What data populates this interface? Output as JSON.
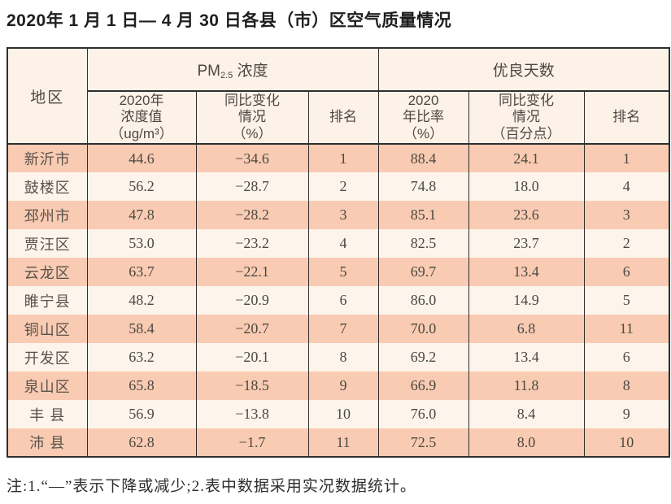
{
  "title": "2020年 1 月 1 日— 4 月 30 日各县（市）区空气质量情况",
  "table": {
    "region_header": "地区",
    "pm_group": {
      "prefix": "PM",
      "sub": "2.5",
      "suffix": " 浓度"
    },
    "days_group": "优良天数",
    "subheaders": [
      "2020年\n浓度值\n（ug/m³）",
      "同比变化\n情况\n（%）",
      "排名",
      "2020\n年比率\n（%）",
      "同比变化\n情况\n（百分点）",
      "排名"
    ],
    "rows": [
      {
        "region": "新沂市",
        "pm_value": "44.6",
        "pm_change": "−34.6",
        "pm_rank": "1",
        "days_ratio": "88.4",
        "days_change": "24.1",
        "days_rank": "1"
      },
      {
        "region": "鼓楼区",
        "pm_value": "56.2",
        "pm_change": "−28.7",
        "pm_rank": "2",
        "days_ratio": "74.8",
        "days_change": "18.0",
        "days_rank": "4"
      },
      {
        "region": "邳州市",
        "pm_value": "47.8",
        "pm_change": "−28.2",
        "pm_rank": "3",
        "days_ratio": "85.1",
        "days_change": "23.6",
        "days_rank": "3"
      },
      {
        "region": "贾汪区",
        "pm_value": "53.0",
        "pm_change": "−23.2",
        "pm_rank": "4",
        "days_ratio": "82.5",
        "days_change": "23.7",
        "days_rank": "2"
      },
      {
        "region": "云龙区",
        "pm_value": "63.7",
        "pm_change": "−22.1",
        "pm_rank": "5",
        "days_ratio": "69.7",
        "days_change": "13.4",
        "days_rank": "6"
      },
      {
        "region": "睢宁县",
        "pm_value": "48.2",
        "pm_change": "−20.9",
        "pm_rank": "6",
        "days_ratio": "86.0",
        "days_change": "14.9",
        "days_rank": "5"
      },
      {
        "region": "铜山区",
        "pm_value": "58.4",
        "pm_change": "−20.7",
        "pm_rank": "7",
        "days_ratio": "70.0",
        "days_change": "6.8",
        "days_rank": "11"
      },
      {
        "region": "开发区",
        "pm_value": "63.2",
        "pm_change": "−20.1",
        "pm_rank": "8",
        "days_ratio": "69.2",
        "days_change": "13.4",
        "days_rank": "6"
      },
      {
        "region": "泉山区",
        "pm_value": "65.8",
        "pm_change": "−18.5",
        "pm_rank": "9",
        "days_ratio": "66.9",
        "days_change": "11.8",
        "days_rank": "8"
      },
      {
        "region": "丰 县",
        "pm_value": "56.9",
        "pm_change": "−13.8",
        "pm_rank": "10",
        "days_ratio": "76.0",
        "days_change": "8.4",
        "days_rank": "9"
      },
      {
        "region": "沛 县",
        "pm_value": "62.8",
        "pm_change": "−1.7",
        "pm_rank": "11",
        "days_ratio": "72.5",
        "days_change": "8.0",
        "days_rank": "10"
      }
    ]
  },
  "note": "注:1.“—”表示下降或减少;2.表中数据采用实况数据统计。",
  "colors": {
    "row_salmon": "#f8cbb2",
    "row_cream": "#fdf4ec",
    "header_bg": "#fdf2e8",
    "border": "#2f2f2f"
  }
}
